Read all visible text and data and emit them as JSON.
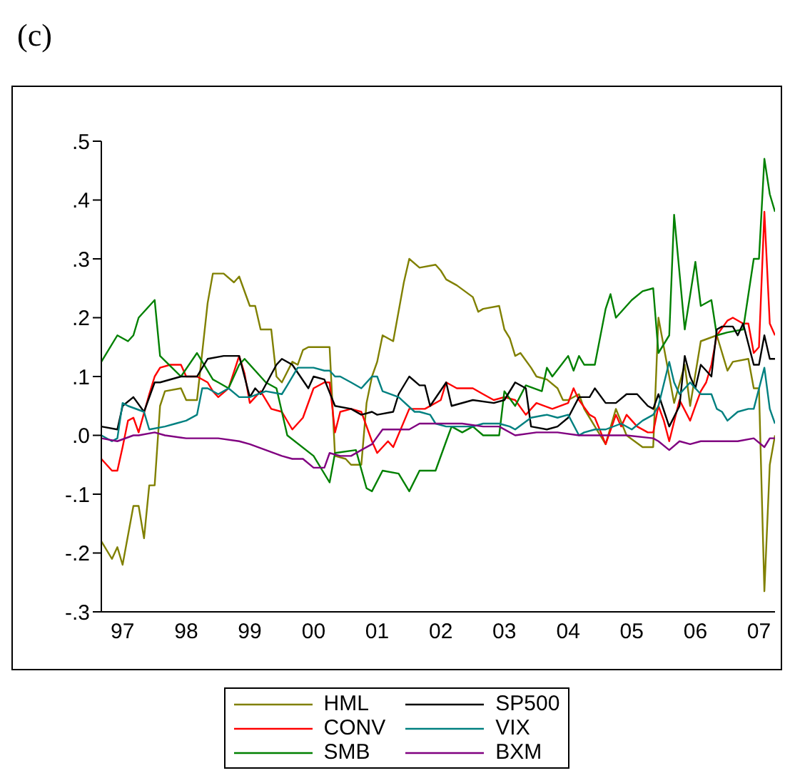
{
  "chart_data": {
    "type": "line",
    "title": "(c)",
    "legend": "bottom",
    "xlim": [
      "1997-03",
      "2007-10"
    ],
    "xticks": [
      {
        "value": "1997-07",
        "label": "97"
      },
      {
        "value": "1998-07",
        "label": "98"
      },
      {
        "value": "1999-07",
        "label": "99"
      },
      {
        "value": "2000-07",
        "label": "00"
      },
      {
        "value": "2001-07",
        "label": "01"
      },
      {
        "value": "2002-07",
        "label": "02"
      },
      {
        "value": "2003-07",
        "label": "03"
      },
      {
        "value": "2004-07",
        "label": "04"
      },
      {
        "value": "2005-07",
        "label": "05"
      },
      {
        "value": "2006-07",
        "label": "06"
      },
      {
        "value": "2007-07",
        "label": "07"
      }
    ],
    "ylim": [
      -0.3,
      0.5
    ],
    "yticks": [
      {
        "value": -0.3,
        "label": "-.3"
      },
      {
        "value": -0.2,
        "label": "-.2"
      },
      {
        "value": -0.1,
        "label": "-.1"
      },
      {
        "value": 0,
        "label": ".0"
      },
      {
        "value": 0.1,
        "label": ".1"
      },
      {
        "value": 0.2,
        "label": ".2"
      },
      {
        "value": 0.3,
        "label": ".3"
      },
      {
        "value": 0.4,
        "label": ".4"
      },
      {
        "value": 0.5,
        "label": ".5"
      }
    ],
    "series": [
      {
        "name": "HML",
        "color": "#808000",
        "x": [
          "1997-03",
          "1997-05",
          "1997-06",
          "1997-07",
          "1997-09",
          "1997-10",
          "1997-11",
          "1997-12",
          "1998-01",
          "1998-02",
          "1998-03",
          "1998-06",
          "1998-07",
          "1998-09",
          "1998-11",
          "1998-12",
          "1999-02",
          "1999-04",
          "1999-05",
          "1999-07",
          "1999-08",
          "1999-09",
          "1999-11",
          "1999-12",
          "2000-01",
          "2000-03",
          "2000-04",
          "2000-05",
          "2000-06",
          "2000-10",
          "2000-11",
          "2001-01",
          "2001-02",
          "2001-04",
          "2001-05",
          "2001-06",
          "2001-07",
          "2001-08",
          "2001-10",
          "2001-12",
          "2002-01",
          "2002-03",
          "2002-06",
          "2002-07",
          "2002-08",
          "2002-10",
          "2003-01",
          "2003-02",
          "2003-03",
          "2003-06",
          "2003-07",
          "2003-08",
          "2003-09",
          "2003-10",
          "2003-12",
          "2004-01",
          "2004-03",
          "2004-05",
          "2004-06",
          "2004-07",
          "2004-09",
          "2004-10",
          "2004-11",
          "2005-01",
          "2005-02",
          "2005-04",
          "2005-06",
          "2005-09",
          "2005-11",
          "2005-12",
          "2006-01",
          "2006-03",
          "2006-05",
          "2006-06",
          "2006-08",
          "2006-11",
          "2007-01",
          "2007-02",
          "2007-05",
          "2007-06",
          "2007-07",
          "2007-08",
          "2007-09",
          "2007-10"
        ],
        "values": [
          -0.18,
          -0.21,
          -0.19,
          -0.22,
          -0.12,
          -0.12,
          -0.175,
          -0.085,
          -0.085,
          0.05,
          0.075,
          0.08,
          0.06,
          0.06,
          0.225,
          0.275,
          0.275,
          0.26,
          0.27,
          0.22,
          0.22,
          0.18,
          0.18,
          0.1,
          0.09,
          0.125,
          0.12,
          0.145,
          0.15,
          0.15,
          -0.035,
          -0.04,
          -0.05,
          -0.05,
          0.055,
          0.1,
          0.125,
          0.17,
          0.16,
          0.26,
          0.3,
          0.285,
          0.29,
          0.28,
          0.265,
          0.255,
          0.235,
          0.21,
          0.215,
          0.22,
          0.18,
          0.165,
          0.135,
          0.14,
          0.115,
          0.1,
          0.095,
          0.08,
          0.06,
          0.06,
          0.07,
          0.045,
          0.03,
          0.0,
          -0.015,
          0.045,
          0.0,
          -0.02,
          -0.02,
          0.2,
          0.15,
          0.055,
          0.12,
          0.05,
          0.16,
          0.17,
          0.11,
          0.125,
          0.13,
          0.08,
          0.08,
          -0.265,
          -0.05,
          0.0
        ]
      },
      {
        "name": "CONV",
        "color": "#ff0000",
        "x": [
          "1997-03",
          "1997-05",
          "1997-06",
          "1997-07",
          "1997-08",
          "1997-09",
          "1997-10",
          "1997-12",
          "1998-01",
          "1998-02",
          "1998-04",
          "1998-06",
          "1998-07",
          "1998-09",
          "1998-11",
          "1998-12",
          "1999-01",
          "1999-03",
          "1999-05",
          "1999-06",
          "1999-07",
          "1999-09",
          "1999-11",
          "2000-01",
          "2000-03",
          "2000-05",
          "2000-07",
          "2000-09",
          "2000-10",
          "2000-11",
          "2000-12",
          "2001-02",
          "2001-04",
          "2001-06",
          "2001-07",
          "2001-09",
          "2001-10",
          "2002-01",
          "2002-04",
          "2002-07",
          "2002-08",
          "2002-10",
          "2003-01",
          "2003-03",
          "2003-05",
          "2003-07",
          "2003-09",
          "2003-11",
          "2004-01",
          "2004-04",
          "2004-07",
          "2004-08",
          "2004-09",
          "2004-11",
          "2004-12",
          "2005-02",
          "2005-04",
          "2005-05",
          "2005-06",
          "2005-08",
          "2005-10",
          "2005-11",
          "2005-12",
          "2006-01",
          "2006-02",
          "2006-04",
          "2006-06",
          "2006-07",
          "2006-08",
          "2006-09",
          "2006-10",
          "2006-11",
          "2007-01",
          "2007-02",
          "2007-04",
          "2007-05",
          "2007-06",
          "2007-07",
          "2007-08",
          "2007-09",
          "2007-10"
        ],
        "values": [
          -0.04,
          -0.06,
          -0.06,
          -0.02,
          0.025,
          0.03,
          0.005,
          0.07,
          0.1,
          0.115,
          0.12,
          0.12,
          0.1,
          0.1,
          0.09,
          0.075,
          0.065,
          0.08,
          0.135,
          0.105,
          0.055,
          0.075,
          0.045,
          0.04,
          0.01,
          0.03,
          0.08,
          0.09,
          0.09,
          0.005,
          0.04,
          0.045,
          0.04,
          -0.01,
          -0.03,
          -0.01,
          -0.02,
          0.045,
          0.045,
          0.06,
          0.09,
          0.08,
          0.08,
          0.07,
          0.06,
          0.065,
          0.06,
          0.035,
          0.055,
          0.045,
          0.055,
          0.08,
          0.06,
          0.035,
          0.03,
          -0.015,
          0.035,
          0.015,
          0.035,
          0.015,
          0.005,
          0.005,
          0.05,
          0.025,
          -0.01,
          0.06,
          0.025,
          0.05,
          0.075,
          0.09,
          0.12,
          0.17,
          0.195,
          0.2,
          0.19,
          0.19,
          0.14,
          0.15,
          0.38,
          0.19,
          0.17
        ]
      },
      {
        "name": "SMB",
        "color": "#008000",
        "x": [
          "1997-03",
          "1997-06",
          "1997-08",
          "1997-09",
          "1997-10",
          "1998-01",
          "1998-02",
          "1998-06",
          "1998-09",
          "1998-12",
          "1999-01",
          "1999-03",
          "1999-05",
          "1999-06",
          "1999-10",
          "1999-12",
          "2000-02",
          "2000-07",
          "2000-10",
          "2000-11",
          "2001-03",
          "2001-05",
          "2001-06",
          "2001-08",
          "2001-11",
          "2002-01",
          "2002-03",
          "2002-06",
          "2002-08",
          "2002-09",
          "2002-11",
          "2003-01",
          "2003-03",
          "2003-06",
          "2003-07",
          "2003-09",
          "2003-11",
          "2004-02",
          "2004-03",
          "2004-04",
          "2004-07",
          "2004-08",
          "2004-09",
          "2004-10",
          "2004-12",
          "2005-02",
          "2005-03",
          "2005-04",
          "2005-07",
          "2005-09",
          "2005-11",
          "2005-12",
          "2006-02",
          "2006-03",
          "2006-05",
          "2006-07",
          "2006-08",
          "2006-10",
          "2006-11",
          "2007-01",
          "2007-04",
          "2007-06",
          "2007-07",
          "2007-08",
          "2007-09",
          "2007-10"
        ],
        "values": [
          0.125,
          0.17,
          0.16,
          0.17,
          0.2,
          0.23,
          0.135,
          0.1,
          0.14,
          0.095,
          0.09,
          0.08,
          0.12,
          0.13,
          0.09,
          0.08,
          0.0,
          -0.035,
          -0.08,
          -0.03,
          -0.025,
          -0.09,
          -0.095,
          -0.06,
          -0.065,
          -0.095,
          -0.06,
          -0.06,
          -0.01,
          0.015,
          0.005,
          0.015,
          0.0,
          0.0,
          0.075,
          0.05,
          0.085,
          0.075,
          0.115,
          0.1,
          0.135,
          0.11,
          0.135,
          0.12,
          0.12,
          0.215,
          0.24,
          0.2,
          0.23,
          0.245,
          0.25,
          0.14,
          0.17,
          0.375,
          0.18,
          0.295,
          0.22,
          0.23,
          0.17,
          0.175,
          0.18,
          0.3,
          0.3,
          0.47,
          0.41,
          0.38
        ]
      },
      {
        "name": "SP500",
        "color": "#000000",
        "x": [
          "1997-03",
          "1997-06",
          "1997-07",
          "1997-09",
          "1997-11",
          "1998-01",
          "1998-02",
          "1998-06",
          "1998-09",
          "1998-11",
          "1999-02",
          "1999-05",
          "1999-07",
          "1999-08",
          "1999-09",
          "1999-12",
          "2000-01",
          "2000-03",
          "2000-06",
          "2000-07",
          "2000-09",
          "2000-11",
          "2001-02",
          "2001-04",
          "2001-06",
          "2001-07",
          "2001-10",
          "2001-11",
          "2002-01",
          "2002-03",
          "2002-04",
          "2002-05",
          "2002-08",
          "2002-09",
          "2003-01",
          "2003-05",
          "2003-07",
          "2003-09",
          "2003-11",
          "2003-12",
          "2004-03",
          "2004-05",
          "2004-07",
          "2004-09",
          "2004-11",
          "2004-12",
          "2005-02",
          "2005-04",
          "2005-06",
          "2005-08",
          "2005-10",
          "2005-11",
          "2005-12",
          "2006-02",
          "2006-04",
          "2006-05",
          "2006-06",
          "2006-07",
          "2006-08",
          "2006-09",
          "2006-10",
          "2006-11",
          "2006-12",
          "2007-02",
          "2007-03",
          "2007-04",
          "2007-06",
          "2007-07",
          "2007-08",
          "2007-09",
          "2007-10"
        ],
        "values": [
          0.015,
          0.01,
          0.05,
          0.065,
          0.04,
          0.09,
          0.09,
          0.1,
          0.1,
          0.13,
          0.135,
          0.135,
          0.065,
          0.08,
          0.07,
          0.12,
          0.13,
          0.12,
          0.08,
          0.1,
          0.095,
          0.05,
          0.045,
          0.035,
          0.04,
          0.035,
          0.04,
          0.07,
          0.1,
          0.085,
          0.085,
          0.05,
          0.09,
          0.05,
          0.06,
          0.055,
          0.06,
          0.09,
          0.08,
          0.015,
          0.01,
          0.015,
          0.03,
          0.065,
          0.065,
          0.08,
          0.055,
          0.055,
          0.07,
          0.07,
          0.05,
          0.045,
          0.07,
          0.015,
          0.05,
          0.135,
          0.1,
          0.08,
          0.12,
          0.11,
          0.1,
          0.18,
          0.185,
          0.185,
          0.17,
          0.19,
          0.12,
          0.12,
          0.17,
          0.13,
          0.13
        ]
      },
      {
        "name": "VIX",
        "color": "#008080",
        "x": [
          "1997-03",
          "1997-05",
          "1997-06",
          "1997-07",
          "1997-08",
          "1997-11",
          "1997-12",
          "1998-03",
          "1998-05",
          "1998-07",
          "1998-09",
          "1998-10",
          "1998-11",
          "1999-01",
          "1999-03",
          "1999-05",
          "1999-07",
          "1999-10",
          "2000-01",
          "2000-02",
          "2000-04",
          "2000-07",
          "2000-09",
          "2000-10",
          "2000-11",
          "2000-12",
          "2001-02",
          "2001-04",
          "2001-06",
          "2001-07",
          "2001-08",
          "2001-11",
          "2002-02",
          "2002-03",
          "2002-05",
          "2002-06",
          "2002-08",
          "2003-01",
          "2003-03",
          "2003-06",
          "2003-08",
          "2003-09",
          "2003-12",
          "2004-03",
          "2004-05",
          "2004-07",
          "2004-09",
          "2004-10",
          "2004-12",
          "2005-02",
          "2005-05",
          "2005-07",
          "2005-09",
          "2005-11",
          "2005-12",
          "2006-02",
          "2006-03",
          "2006-04",
          "2006-06",
          "2006-07",
          "2006-08",
          "2006-10",
          "2006-11",
          "2006-12",
          "2007-01",
          "2007-03",
          "2007-05",
          "2007-06",
          "2007-08",
          "2007-09",
          "2007-10"
        ],
        "values": [
          0.0,
          -0.01,
          -0.005,
          0.055,
          0.05,
          0.04,
          0.01,
          0.015,
          0.02,
          0.025,
          0.035,
          0.08,
          0.08,
          0.07,
          0.08,
          0.065,
          0.065,
          0.075,
          0.07,
          0.085,
          0.115,
          0.115,
          0.11,
          0.11,
          0.1,
          0.1,
          0.09,
          0.08,
          0.1,
          0.1,
          0.075,
          0.065,
          0.04,
          0.04,
          0.035,
          0.02,
          0.015,
          0.015,
          0.02,
          0.02,
          0.015,
          0.01,
          0.03,
          0.035,
          0.03,
          0.035,
          0.0,
          0.005,
          0.01,
          0.01,
          0.02,
          0.01,
          0.025,
          0.035,
          0.05,
          0.125,
          0.09,
          0.07,
          0.09,
          0.08,
          0.07,
          0.07,
          0.045,
          0.04,
          0.025,
          0.04,
          0.045,
          0.045,
          0.115,
          0.045,
          0.02
        ]
      },
      {
        "name": "BXM",
        "color": "#800080",
        "x": [
          "1997-03",
          "1997-06",
          "1997-09",
          "1997-10",
          "1998-01",
          "1998-03",
          "1998-07",
          "1998-09",
          "1999-01",
          "1999-05",
          "1999-07",
          "1999-10",
          "2000-01",
          "2000-03",
          "2000-05",
          "2000-07",
          "2000-09",
          "2000-10",
          "2000-12",
          "2001-02",
          "2001-04",
          "2001-06",
          "2001-08",
          "2001-10",
          "2002-01",
          "2002-03",
          "2002-05",
          "2002-07",
          "2002-11",
          "2003-03",
          "2003-06",
          "2003-09",
          "2004-01",
          "2004-05",
          "2004-09",
          "2005-02",
          "2005-06",
          "2005-11",
          "2005-12",
          "2006-02",
          "2006-04",
          "2006-06",
          "2006-08",
          "2006-12",
          "2007-03",
          "2007-06",
          "2007-08",
          "2007-09",
          "2007-10"
        ],
        "values": [
          -0.005,
          -0.01,
          0.0,
          0.0,
          0.005,
          0.0,
          -0.005,
          -0.005,
          -0.005,
          -0.01,
          -0.015,
          -0.025,
          -0.035,
          -0.04,
          -0.04,
          -0.055,
          -0.055,
          -0.03,
          -0.035,
          -0.035,
          -0.025,
          -0.015,
          0.01,
          0.01,
          0.01,
          0.02,
          0.02,
          0.02,
          0.02,
          0.015,
          0.015,
          0.0,
          0.005,
          0.005,
          0.0,
          0.0,
          0.0,
          -0.005,
          -0.01,
          -0.025,
          -0.01,
          -0.015,
          -0.01,
          -0.01,
          -0.01,
          -0.005,
          -0.02,
          -0.005,
          -0.005
        ]
      }
    ]
  }
}
